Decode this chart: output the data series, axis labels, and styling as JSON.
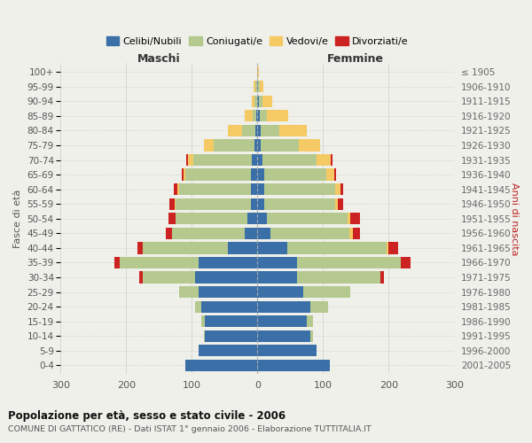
{
  "age_groups": [
    "0-4",
    "5-9",
    "10-14",
    "15-19",
    "20-24",
    "25-29",
    "30-34",
    "35-39",
    "40-44",
    "45-49",
    "50-54",
    "55-59",
    "60-64",
    "65-69",
    "70-74",
    "75-79",
    "80-84",
    "85-89",
    "90-94",
    "95-99",
    "100+"
  ],
  "birth_years": [
    "2001-2005",
    "1996-2000",
    "1991-1995",
    "1986-1990",
    "1981-1985",
    "1976-1980",
    "1971-1975",
    "1966-1970",
    "1961-1965",
    "1956-1960",
    "1951-1955",
    "1946-1950",
    "1941-1945",
    "1936-1940",
    "1931-1935",
    "1926-1930",
    "1921-1925",
    "1916-1920",
    "1911-1915",
    "1906-1910",
    "≤ 1905"
  ],
  "male_celibi": [
    110,
    90,
    80,
    80,
    85,
    90,
    95,
    90,
    45,
    20,
    15,
    10,
    10,
    10,
    8,
    5,
    3,
    2,
    1,
    1,
    0
  ],
  "male_coniugati": [
    0,
    0,
    2,
    5,
    10,
    30,
    80,
    120,
    130,
    110,
    110,
    115,
    110,
    100,
    90,
    62,
    20,
    5,
    3,
    2,
    0
  ],
  "male_vedovi": [
    0,
    0,
    0,
    0,
    0,
    0,
    0,
    0,
    0,
    0,
    0,
    1,
    2,
    3,
    8,
    14,
    22,
    12,
    5,
    3,
    0
  ],
  "male_divorziati": [
    0,
    0,
    0,
    0,
    0,
    0,
    5,
    8,
    8,
    10,
    10,
    8,
    5,
    3,
    2,
    0,
    0,
    0,
    0,
    0,
    0
  ],
  "female_celibi": [
    110,
    90,
    80,
    75,
    80,
    70,
    60,
    60,
    45,
    20,
    15,
    10,
    10,
    10,
    8,
    5,
    5,
    3,
    2,
    1,
    0
  ],
  "female_coniugati": [
    0,
    0,
    5,
    10,
    28,
    72,
    128,
    158,
    152,
    120,
    122,
    108,
    108,
    95,
    82,
    58,
    28,
    12,
    5,
    3,
    0
  ],
  "female_vedovi": [
    0,
    0,
    0,
    0,
    0,
    0,
    0,
    0,
    2,
    5,
    5,
    5,
    8,
    12,
    22,
    32,
    42,
    32,
    15,
    5,
    2
  ],
  "female_divorziati": [
    0,
    0,
    0,
    0,
    0,
    0,
    5,
    15,
    15,
    12,
    15,
    8,
    5,
    3,
    2,
    0,
    0,
    0,
    0,
    0,
    0
  ],
  "color_celibi": "#3a6fa8",
  "color_coniugati": "#b5c98e",
  "color_vedovi": "#f5c963",
  "color_divorziati": "#cc2222",
  "bg_color": "#f0f0eb",
  "title1": "Popolazione per età, sesso e stato civile - 2006",
  "title2": "COMUNE DI GATTATICO (RE) - Dati ISTAT 1° gennaio 2006 - Elaborazione TUTTITALIA.IT",
  "label_maschi": "Maschi",
  "label_femmine": "Femmine",
  "ylabel_left": "Fasce di età",
  "ylabel_right": "Anni di nascita",
  "xmin": -300,
  "xmax": 300,
  "xticks": [
    -300,
    -200,
    -100,
    0,
    100,
    200,
    300
  ]
}
